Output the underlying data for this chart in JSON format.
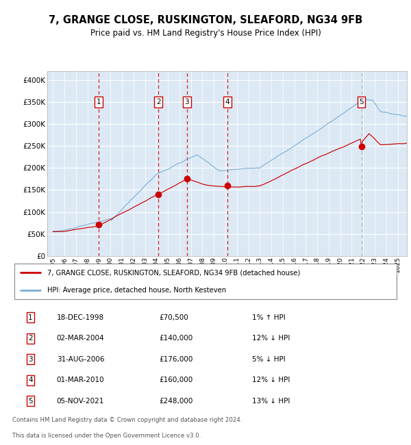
{
  "title": "7, GRANGE CLOSE, RUSKINGTON, SLEAFORD, NG34 9FB",
  "subtitle": "Price paid vs. HM Land Registry's House Price Index (HPI)",
  "legend_red": "7, GRANGE CLOSE, RUSKINGTON, SLEAFORD, NG34 9FB (detached house)",
  "legend_blue": "HPI: Average price, detached house, North Kesteven",
  "footer1": "Contains HM Land Registry data © Crown copyright and database right 2024.",
  "footer2": "This data is licensed under the Open Government Licence v3.0.",
  "transactions": [
    {
      "num": 1,
      "date": "18-DEC-1998",
      "price": 70500,
      "pct": "1%",
      "dir": "↑",
      "year": 1998.96
    },
    {
      "num": 2,
      "date": "02-MAR-2004",
      "price": 140000,
      "pct": "12%",
      "dir": "↓",
      "year": 2004.17
    },
    {
      "num": 3,
      "date": "31-AUG-2006",
      "price": 176000,
      "pct": "5%",
      "dir": "↓",
      "year": 2006.66
    },
    {
      "num": 4,
      "date": "01-MAR-2010",
      "price": 160000,
      "pct": "12%",
      "dir": "↓",
      "year": 2010.17
    },
    {
      "num": 5,
      "date": "05-NOV-2021",
      "price": 248000,
      "pct": "13%",
      "dir": "↓",
      "year": 2021.84
    }
  ],
  "plot_bg": "#dce9f5",
  "red_color": "#cc0000",
  "blue_color": "#7bafd4",
  "vline_color_red": "#cc0000",
  "vline_color_grey": "#aaaaaa",
  "ylim": [
    0,
    420000
  ],
  "xlim_start": 1994.5,
  "xlim_end": 2025.8,
  "yticks": [
    0,
    50000,
    100000,
    150000,
    200000,
    250000,
    300000,
    350000,
    400000
  ]
}
